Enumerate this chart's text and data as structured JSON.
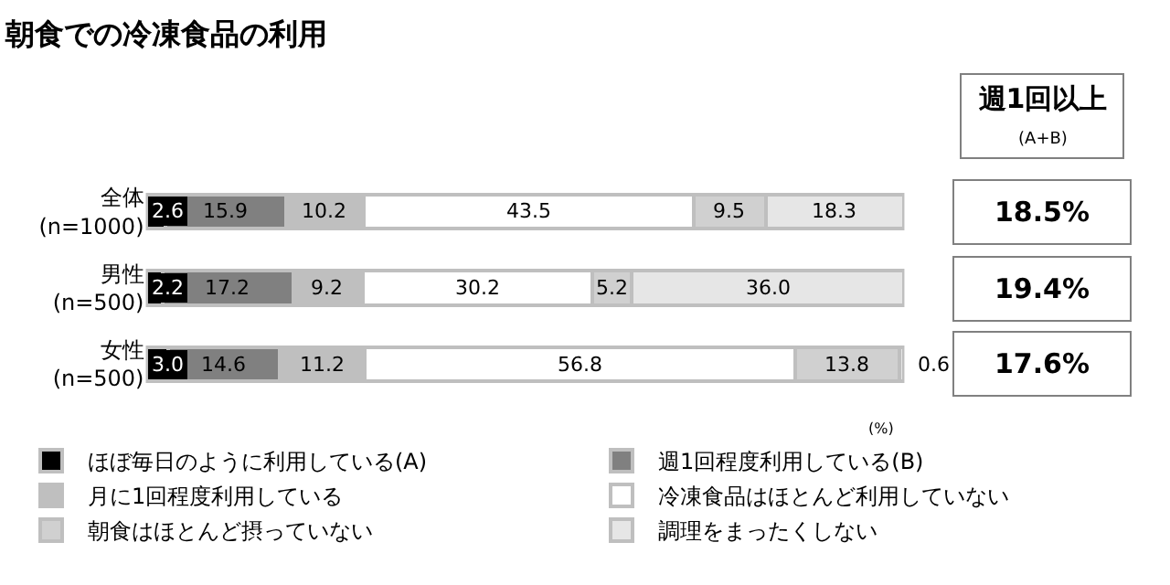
{
  "chart_data": {
    "type": "bar",
    "orientation": "horizontal",
    "stacked": true,
    "title": "朝食での冷凍食品の利用",
    "categories": [
      "全体\n(n=1000)",
      "男性\n(n=500)",
      "女性\n(n=500)"
    ],
    "series": [
      {
        "name": "ほぼ毎日のように利用している(A)",
        "color": "#000000",
        "values": [
          2.6,
          2.2,
          3.0
        ],
        "value_labels": [
          "2.6",
          "2.2",
          "3.0"
        ]
      },
      {
        "name": "週1回程度利用している(B)",
        "color": "#808080",
        "values": [
          15.9,
          17.2,
          14.6
        ],
        "value_labels": [
          "15.9",
          "17.2",
          "14.6"
        ]
      },
      {
        "name": "月に1回程度利用している",
        "color": "#bfbfbf",
        "values": [
          10.2,
          9.2,
          11.2
        ],
        "value_labels": [
          "10.2",
          "9.2",
          "11.2"
        ]
      },
      {
        "name": "冷凍食品はほとんど利用していない",
        "color": "#ffffff",
        "values": [
          43.5,
          30.2,
          56.8
        ],
        "value_labels": [
          "43.5",
          "30.2",
          "56.8"
        ]
      },
      {
        "name": "朝食はほとんど摂っていない",
        "color": "#d0d0d0",
        "values": [
          9.5,
          5.2,
          13.8
        ],
        "value_labels": [
          "9.5",
          "5.2",
          "13.8"
        ]
      },
      {
        "name": "調理をまったくしない",
        "color": "#e6e6e6",
        "values": [
          18.3,
          36.0,
          0.6
        ],
        "value_labels": [
          "18.3",
          "36.0",
          "0.6"
        ]
      }
    ],
    "xlim": [
      0,
      100
    ],
    "tick_labels": "y",
    "legend": "bottom",
    "annotations": [
      "週1回以上",
      "(A+B)",
      "18.5%",
      "19.4%",
      "17.6%",
      "(%)"
    ]
  }
}
